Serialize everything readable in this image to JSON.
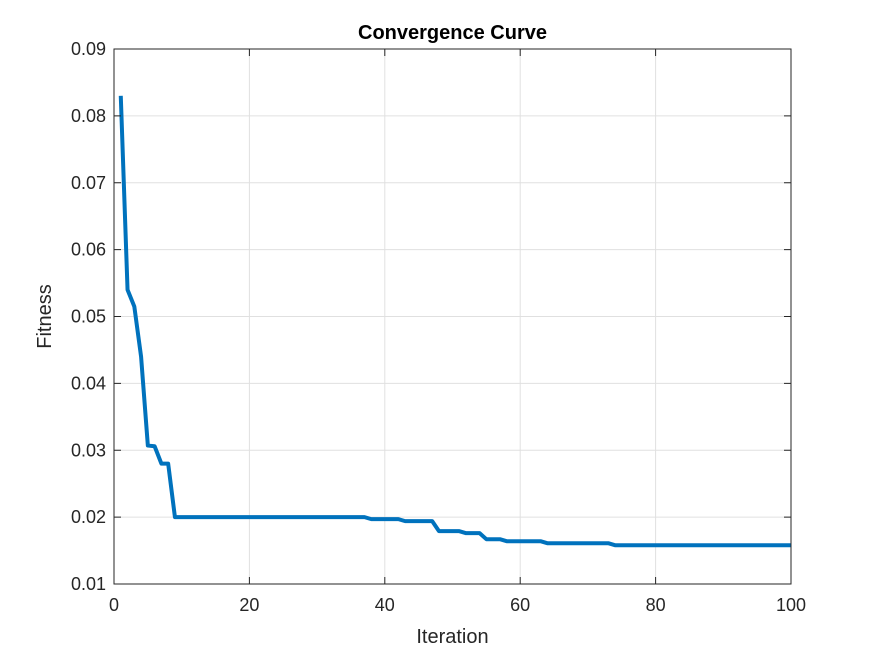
{
  "chart_data": {
    "type": "line",
    "title": "Convergence Curve",
    "xlabel": "Iteration",
    "ylabel": "Fitness",
    "xlim": [
      0,
      100
    ],
    "ylim": [
      0.01,
      0.09
    ],
    "x_ticks": [
      0,
      20,
      40,
      60,
      80,
      100
    ],
    "y_ticks": [
      0.01,
      0.02,
      0.03,
      0.04,
      0.05,
      0.06,
      0.07,
      0.08,
      0.09
    ],
    "x_tick_labels": [
      "0",
      "20",
      "40",
      "60",
      "80",
      "100"
    ],
    "y_tick_labels": [
      "0.01",
      "0.02",
      "0.03",
      "0.04",
      "0.05",
      "0.06",
      "0.07",
      "0.08",
      "0.09"
    ],
    "grid": true,
    "color": "#0072BD",
    "series": [
      {
        "points": [
          [
            1,
            0.083
          ],
          [
            2,
            0.054
          ],
          [
            3,
            0.0515
          ],
          [
            4,
            0.044
          ],
          [
            5,
            0.0307
          ],
          [
            6,
            0.0306
          ],
          [
            7,
            0.028
          ],
          [
            8,
            0.028
          ],
          [
            9,
            0.02
          ],
          [
            10,
            0.02
          ],
          [
            37,
            0.02
          ],
          [
            38,
            0.0197
          ],
          [
            42,
            0.0197
          ],
          [
            43,
            0.0194
          ],
          [
            47,
            0.0194
          ],
          [
            48,
            0.0179
          ],
          [
            51,
            0.0179
          ],
          [
            52,
            0.0176
          ],
          [
            54,
            0.0176
          ],
          [
            55,
            0.0167
          ],
          [
            57,
            0.0167
          ],
          [
            58,
            0.0164
          ],
          [
            63,
            0.0164
          ],
          [
            64,
            0.0161
          ],
          [
            73,
            0.0161
          ],
          [
            74,
            0.0158
          ],
          [
            100,
            0.0158
          ]
        ]
      }
    ]
  }
}
